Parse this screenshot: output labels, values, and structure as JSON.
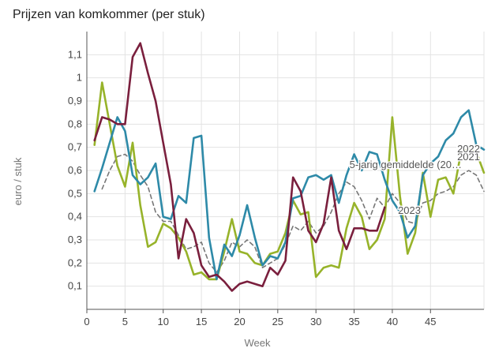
{
  "title": "Prijzen van komkommer (per stuk)",
  "chart_data": {
    "type": "line",
    "title": "Prijzen van komkommer (per stuk)",
    "xlabel": "Week",
    "ylabel": "euro / stuk",
    "xlim": [
      0,
      52
    ],
    "ylim": [
      0,
      1.2
    ],
    "x_ticks": [
      0,
      5,
      10,
      15,
      20,
      25,
      30,
      35,
      40,
      45
    ],
    "y_ticks": [
      0.1,
      0.2,
      0.3,
      0.4,
      0.5,
      0.6,
      0.7,
      0.8,
      0.9,
      1,
      1.1
    ],
    "y_tick_labels": [
      "0,1",
      "0,2",
      "0,3",
      "0,4",
      "0,5",
      "0,6",
      "0,7",
      "0,8",
      "0,9",
      "1",
      "1,1"
    ],
    "grid": true,
    "series": [
      {
        "name": "5-jarig gemiddelde (20…",
        "color": "#777777",
        "dash": true,
        "points": [
          [
            2,
            0.52
          ],
          [
            3,
            0.6
          ],
          [
            4,
            0.66
          ],
          [
            5,
            0.67
          ],
          [
            6,
            0.64
          ],
          [
            7,
            0.58
          ],
          [
            8,
            0.53
          ],
          [
            9,
            0.42
          ],
          [
            10,
            0.38
          ],
          [
            11,
            0.38
          ],
          [
            12,
            0.32
          ],
          [
            13,
            0.26
          ],
          [
            14,
            0.27
          ],
          [
            15,
            0.29
          ],
          [
            16,
            0.2
          ],
          [
            17,
            0.16
          ],
          [
            18,
            0.21
          ],
          [
            19,
            0.29
          ],
          [
            20,
            0.27
          ],
          [
            21,
            0.3
          ],
          [
            22,
            0.27
          ],
          [
            23,
            0.18
          ],
          [
            24,
            0.2
          ],
          [
            25,
            0.22
          ],
          [
            26,
            0.28
          ],
          [
            27,
            0.36
          ],
          [
            28,
            0.34
          ],
          [
            29,
            0.38
          ],
          [
            30,
            0.33
          ],
          [
            31,
            0.36
          ],
          [
            32,
            0.42
          ],
          [
            33,
            0.5
          ],
          [
            34,
            0.55
          ],
          [
            35,
            0.53
          ],
          [
            36,
            0.47
          ],
          [
            37,
            0.39
          ],
          [
            38,
            0.48
          ],
          [
            39,
            0.44
          ],
          [
            40,
            0.5
          ],
          [
            41,
            0.46
          ],
          [
            42,
            0.38
          ],
          [
            43,
            0.37
          ],
          [
            44,
            0.46
          ],
          [
            45,
            0.47
          ],
          [
            46,
            0.5
          ],
          [
            47,
            0.51
          ],
          [
            48,
            0.53
          ],
          [
            49,
            0.58
          ],
          [
            50,
            0.6
          ],
          [
            51,
            0.58
          ],
          [
            52,
            0.51
          ]
        ]
      },
      {
        "name": "2021",
        "color": "#97b32a",
        "dash": false,
        "points": [
          [
            1,
            0.71
          ],
          [
            2,
            0.98
          ],
          [
            3,
            0.8
          ],
          [
            4,
            0.62
          ],
          [
            5,
            0.53
          ],
          [
            6,
            0.72
          ],
          [
            7,
            0.45
          ],
          [
            8,
            0.27
          ],
          [
            9,
            0.29
          ],
          [
            10,
            0.37
          ],
          [
            11,
            0.35
          ],
          [
            12,
            0.31
          ],
          [
            13,
            0.25
          ],
          [
            14,
            0.15
          ],
          [
            15,
            0.16
          ],
          [
            16,
            0.13
          ],
          [
            17,
            0.13
          ],
          [
            18,
            0.25
          ],
          [
            19,
            0.39
          ],
          [
            20,
            0.25
          ],
          [
            21,
            0.24
          ],
          [
            22,
            0.2
          ],
          [
            23,
            0.19
          ],
          [
            24,
            0.24
          ],
          [
            25,
            0.25
          ],
          [
            26,
            0.33
          ],
          [
            27,
            0.47
          ],
          [
            28,
            0.41
          ],
          [
            29,
            0.42
          ],
          [
            30,
            0.14
          ],
          [
            31,
            0.18
          ],
          [
            32,
            0.19
          ],
          [
            33,
            0.18
          ],
          [
            34,
            0.35
          ],
          [
            35,
            0.46
          ],
          [
            36,
            0.4
          ],
          [
            37,
            0.26
          ],
          [
            38,
            0.3
          ],
          [
            39,
            0.39
          ],
          [
            40,
            0.83
          ],
          [
            41,
            0.49
          ],
          [
            42,
            0.24
          ],
          [
            43,
            0.33
          ],
          [
            44,
            0.59
          ],
          [
            45,
            0.4
          ],
          [
            46,
            0.56
          ],
          [
            47,
            0.57
          ],
          [
            48,
            0.5
          ],
          [
            49,
            0.68
          ],
          [
            50,
            0.69
          ],
          [
            51,
            0.68
          ],
          [
            52,
            0.59
          ]
        ]
      },
      {
        "name": "2022",
        "color": "#2e8aa8",
        "dash": false,
        "points": [
          [
            1,
            0.51
          ],
          [
            2,
            0.61
          ],
          [
            3,
            0.72
          ],
          [
            4,
            0.83
          ],
          [
            5,
            0.77
          ],
          [
            6,
            0.58
          ],
          [
            7,
            0.54
          ],
          [
            8,
            0.57
          ],
          [
            9,
            0.63
          ],
          [
            10,
            0.4
          ],
          [
            11,
            0.39
          ],
          [
            12,
            0.49
          ],
          [
            13,
            0.46
          ],
          [
            14,
            0.74
          ],
          [
            15,
            0.75
          ],
          [
            16,
            0.31
          ],
          [
            17,
            0.13
          ],
          [
            18,
            0.28
          ],
          [
            19,
            0.23
          ],
          [
            20,
            0.32
          ],
          [
            21,
            0.45
          ],
          [
            22,
            0.31
          ],
          [
            23,
            0.19
          ],
          [
            24,
            0.23
          ],
          [
            25,
            0.22
          ],
          [
            26,
            0.29
          ],
          [
            27,
            0.48
          ],
          [
            28,
            0.49
          ],
          [
            29,
            0.57
          ],
          [
            30,
            0.58
          ],
          [
            31,
            0.56
          ],
          [
            32,
            0.58
          ],
          [
            33,
            0.46
          ],
          [
            34,
            0.58
          ],
          [
            35,
            0.67
          ],
          [
            36,
            0.6
          ],
          [
            37,
            0.68
          ],
          [
            38,
            0.67
          ],
          [
            39,
            0.56
          ],
          [
            40,
            0.47
          ],
          [
            41,
            0.42
          ],
          [
            42,
            0.31
          ],
          [
            43,
            0.36
          ],
          [
            44,
            0.58
          ],
          [
            45,
            0.63
          ],
          [
            46,
            0.66
          ],
          [
            47,
            0.73
          ],
          [
            48,
            0.76
          ],
          [
            49,
            0.83
          ],
          [
            50,
            0.86
          ],
          [
            51,
            0.71
          ],
          [
            52,
            0.69
          ]
        ]
      },
      {
        "name": "2023",
        "color": "#7a1f3d",
        "dash": false,
        "points": [
          [
            1,
            0.73
          ],
          [
            2,
            0.83
          ],
          [
            3,
            0.82
          ],
          [
            4,
            0.8
          ],
          [
            5,
            0.8
          ],
          [
            6,
            1.09
          ],
          [
            7,
            1.15
          ],
          [
            8,
            1.02
          ],
          [
            9,
            0.9
          ],
          [
            10,
            0.72
          ],
          [
            11,
            0.54
          ],
          [
            12,
            0.22
          ],
          [
            13,
            0.39
          ],
          [
            14,
            0.33
          ],
          [
            15,
            0.19
          ],
          [
            16,
            0.14
          ],
          [
            17,
            0.15
          ],
          [
            18,
            0.12
          ],
          [
            19,
            0.08
          ],
          [
            20,
            0.11
          ],
          [
            21,
            0.12
          ],
          [
            22,
            0.11
          ],
          [
            23,
            0.1
          ],
          [
            24,
            0.18
          ],
          [
            25,
            0.15
          ],
          [
            26,
            0.21
          ],
          [
            27,
            0.57
          ],
          [
            28,
            0.51
          ],
          [
            29,
            0.34
          ],
          [
            30,
            0.29
          ],
          [
            31,
            0.37
          ],
          [
            32,
            0.57
          ],
          [
            33,
            0.34
          ],
          [
            34,
            0.26
          ],
          [
            35,
            0.35
          ],
          [
            36,
            0.35
          ],
          [
            37,
            0.34
          ],
          [
            38,
            0.34
          ],
          [
            39,
            0.44
          ]
        ]
      }
    ]
  }
}
